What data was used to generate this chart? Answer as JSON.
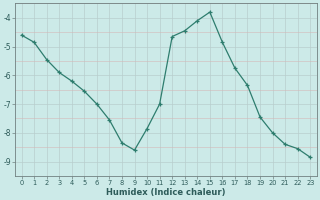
{
  "x": [
    0,
    1,
    2,
    3,
    4,
    5,
    6,
    7,
    8,
    9,
    10,
    11,
    12,
    13,
    14,
    15,
    16,
    17,
    18,
    19,
    20,
    21,
    22,
    23
  ],
  "y": [
    -4.6,
    -4.85,
    -5.45,
    -5.9,
    -6.2,
    -6.55,
    -7.0,
    -7.55,
    -8.35,
    -8.6,
    -7.85,
    -7.0,
    -4.65,
    -4.45,
    -4.1,
    -3.8,
    -4.85,
    -5.75,
    -6.35,
    -7.45,
    -8.0,
    -8.4,
    -8.55,
    -8.85
  ],
  "xlabel": "Humidex (Indice chaleur)",
  "xlim": [
    -0.5,
    23.5
  ],
  "ylim": [
    -9.5,
    -3.5
  ],
  "yticks": [
    -9,
    -8,
    -7,
    -6,
    -5,
    -4
  ],
  "xticks": [
    0,
    1,
    2,
    3,
    4,
    5,
    6,
    7,
    8,
    9,
    10,
    11,
    12,
    13,
    14,
    15,
    16,
    17,
    18,
    19,
    20,
    21,
    22,
    23
  ],
  "line_color": "#2e7d6e",
  "bg_color": "#cceae8",
  "grid_color_minor": "#c8dedd",
  "grid_color_major": "#b8cecd",
  "tick_label_color": "#2e5c5a",
  "xlabel_color": "#2e5c5a"
}
